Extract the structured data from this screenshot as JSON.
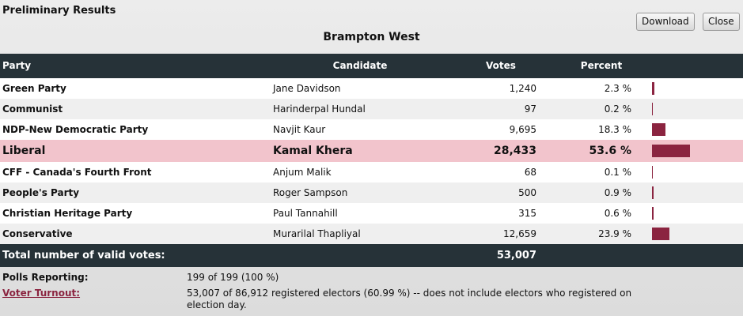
{
  "header": {
    "title": "Preliminary Results",
    "riding": "Brampton West",
    "buttons": [
      "Download",
      "Close"
    ]
  },
  "table": {
    "columns": [
      "Party",
      "Candidate",
      "Votes",
      "Percent"
    ],
    "rows": [
      {
        "party": "Green Party",
        "candidate": "Jane Davidson",
        "votes": "1,240",
        "percent": {
          "value": 2.3,
          "label": "2.3 %"
        }
      },
      {
        "party": "Communist",
        "candidate": "Harinderpal Hundal",
        "votes": "97",
        "percent": {
          "value": 0.2,
          "label": "0.2 %"
        }
      },
      {
        "party": "NDP-New Democratic Party",
        "candidate": "Navjit Kaur",
        "votes": "9,695",
        "percent": {
          "value": 18.3,
          "label": "18.3 %"
        }
      },
      {
        "party": "Liberal",
        "candidate": "Kamal Khera",
        "votes": "28,433",
        "percent": {
          "value": 53.6,
          "label": "53.6 %"
        },
        "winner": true
      },
      {
        "party": "CFF - Canada's Fourth Front",
        "candidate": "Anjum Malik",
        "votes": "68",
        "percent": {
          "value": 0.1,
          "label": "0.1 %"
        }
      },
      {
        "party": "People's Party",
        "candidate": "Roger Sampson",
        "votes": "500",
        "percent": {
          "value": 0.9,
          "label": "0.9 %"
        }
      },
      {
        "party": "Christian Heritage Party",
        "candidate": "Paul Tannahill",
        "votes": "315",
        "percent": {
          "value": 0.6,
          "label": "0.6 %"
        }
      },
      {
        "party": "Conservative",
        "candidate": "Murarilal Thapliyal",
        "votes": "12,659",
        "percent": {
          "value": 23.9,
          "label": "23.9 %"
        }
      }
    ],
    "bar_color": "#8b2440",
    "total": {
      "label": "Total number of valid votes:",
      "votes": "53,007"
    }
  },
  "footer": {
    "polls_label": "Polls Reporting:",
    "polls_value": "199 of 199 (100 %)",
    "turnout_label": "Voter Turnout:",
    "turnout_value": "53,007 of 86,912 registered electors (60.99 %) -- does not include electors who registered on election day."
  }
}
